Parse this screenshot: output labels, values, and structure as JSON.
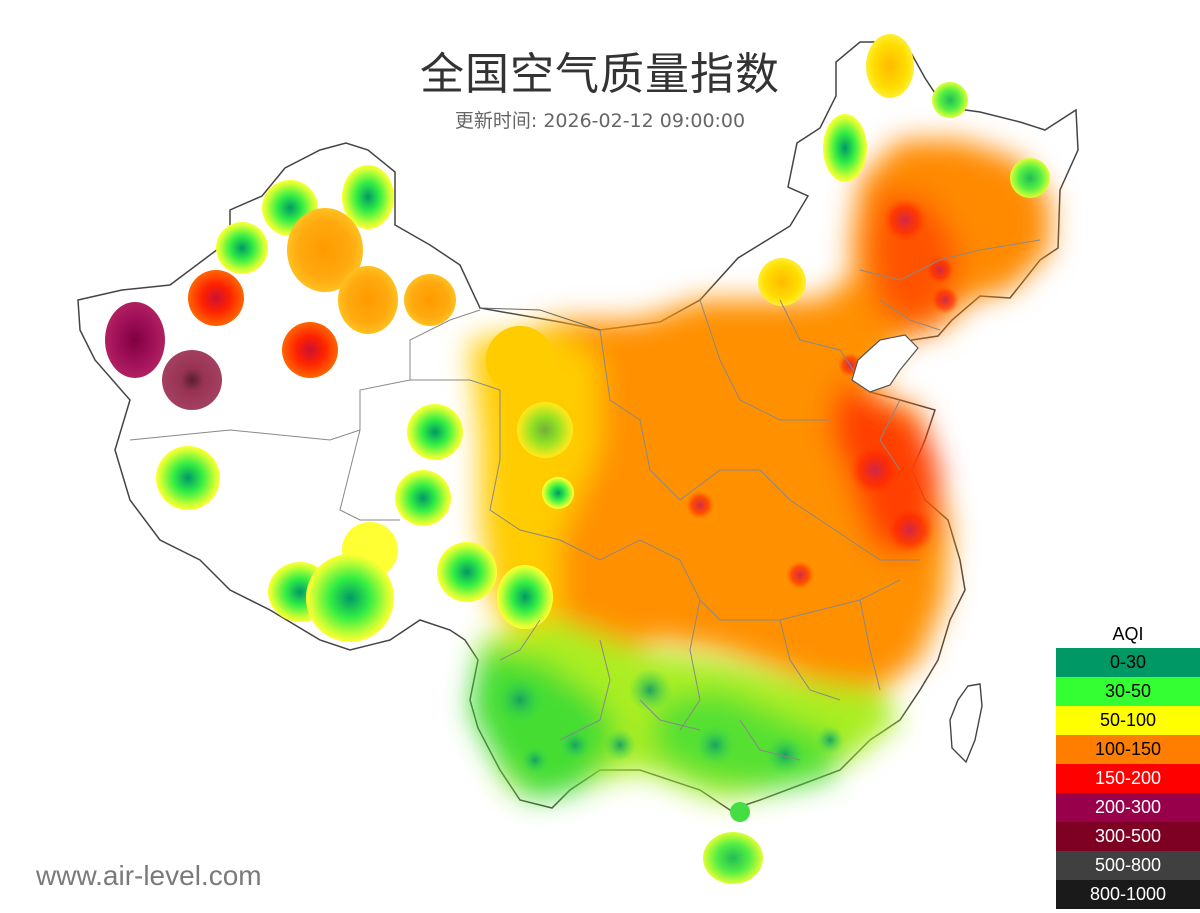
{
  "header": {
    "title": "全国空气质量指数",
    "update_time": "更新时间: 2026-02-12 09:00:00"
  },
  "watermark": "www.air-level.com",
  "legend": {
    "title": "AQI",
    "items": [
      {
        "label": "0-30",
        "color": "#009966",
        "text_color": "#000000"
      },
      {
        "label": "30-50",
        "color": "#33ff33",
        "text_color": "#000000"
      },
      {
        "label": "50-100",
        "color": "#ffff00",
        "text_color": "#000000"
      },
      {
        "label": "100-150",
        "color": "#ff7e00",
        "text_color": "#000000"
      },
      {
        "label": "150-200",
        "color": "#ff0000",
        "text_color": "#ffffff"
      },
      {
        "label": "200-300",
        "color": "#99004c",
        "text_color": "#ffffff"
      },
      {
        "label": "300-500",
        "color": "#7e0023",
        "text_color": "#ffffff"
      },
      {
        "label": "500-800",
        "color": "#404040",
        "text_color": "#ffffff"
      },
      {
        "label": "800-1000",
        "color": "#1a1a1a",
        "text_color": "#ffffff"
      }
    ]
  }
}
